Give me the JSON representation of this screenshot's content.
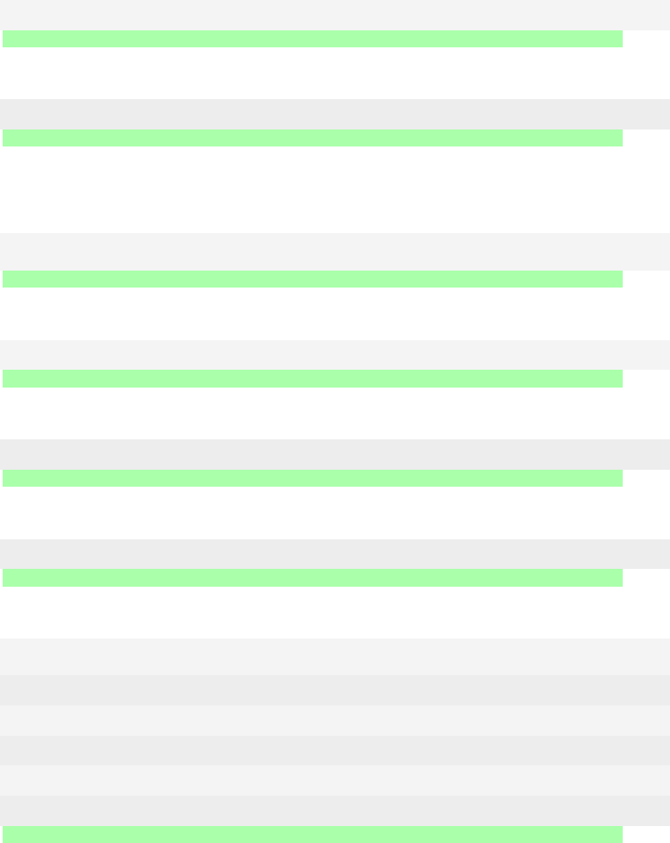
{
  "colors": {
    "band_light": "#f4f4f4",
    "band_dark": "#ededed",
    "highlight_bar": "#aaffaa"
  }
}
